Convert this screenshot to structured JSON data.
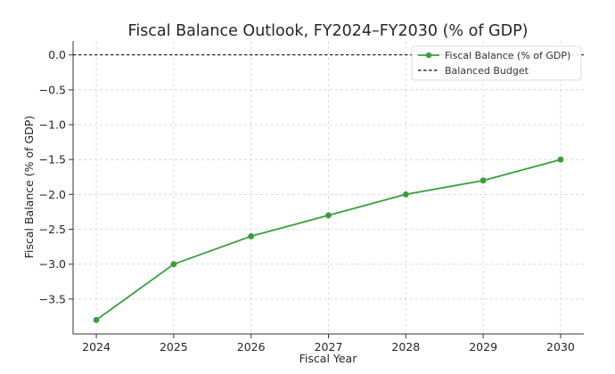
{
  "chart_data": {
    "type": "line",
    "title": "Fiscal Balance Outlook, FY2024–FY2030 (% of GDP)",
    "xlabel": "Fiscal Year",
    "ylabel": "Fiscal Balance (% of GDP)",
    "x": [
      2024,
      2025,
      2026,
      2027,
      2028,
      2029,
      2030
    ],
    "x_tick_labels": [
      "2024",
      "2025",
      "2026",
      "2027",
      "2028",
      "2029",
      "2030"
    ],
    "ylim": [
      -4.0,
      0.2
    ],
    "y_ticks": [
      0.0,
      -0.5,
      -1.0,
      -1.5,
      -2.0,
      -2.5,
      -3.0,
      -3.5
    ],
    "y_tick_labels": [
      "0.0",
      "−0.5",
      "−1.0",
      "−1.5",
      "−2.0",
      "−2.5",
      "−3.0",
      "−3.5"
    ],
    "grid": true,
    "legend_position": "top-right",
    "series": [
      {
        "name": "Fiscal Balance (% of GDP)",
        "values": [
          -3.8,
          -3.0,
          -2.6,
          -2.3,
          -2.0,
          -1.8,
          -1.5
        ],
        "color": "#3a9e3a",
        "style": "solid",
        "marker": "circle"
      }
    ],
    "reference_lines": [
      {
        "name": "Balanced Budget",
        "y": 0.0,
        "color": "#000000",
        "style": "dashed"
      }
    ]
  }
}
